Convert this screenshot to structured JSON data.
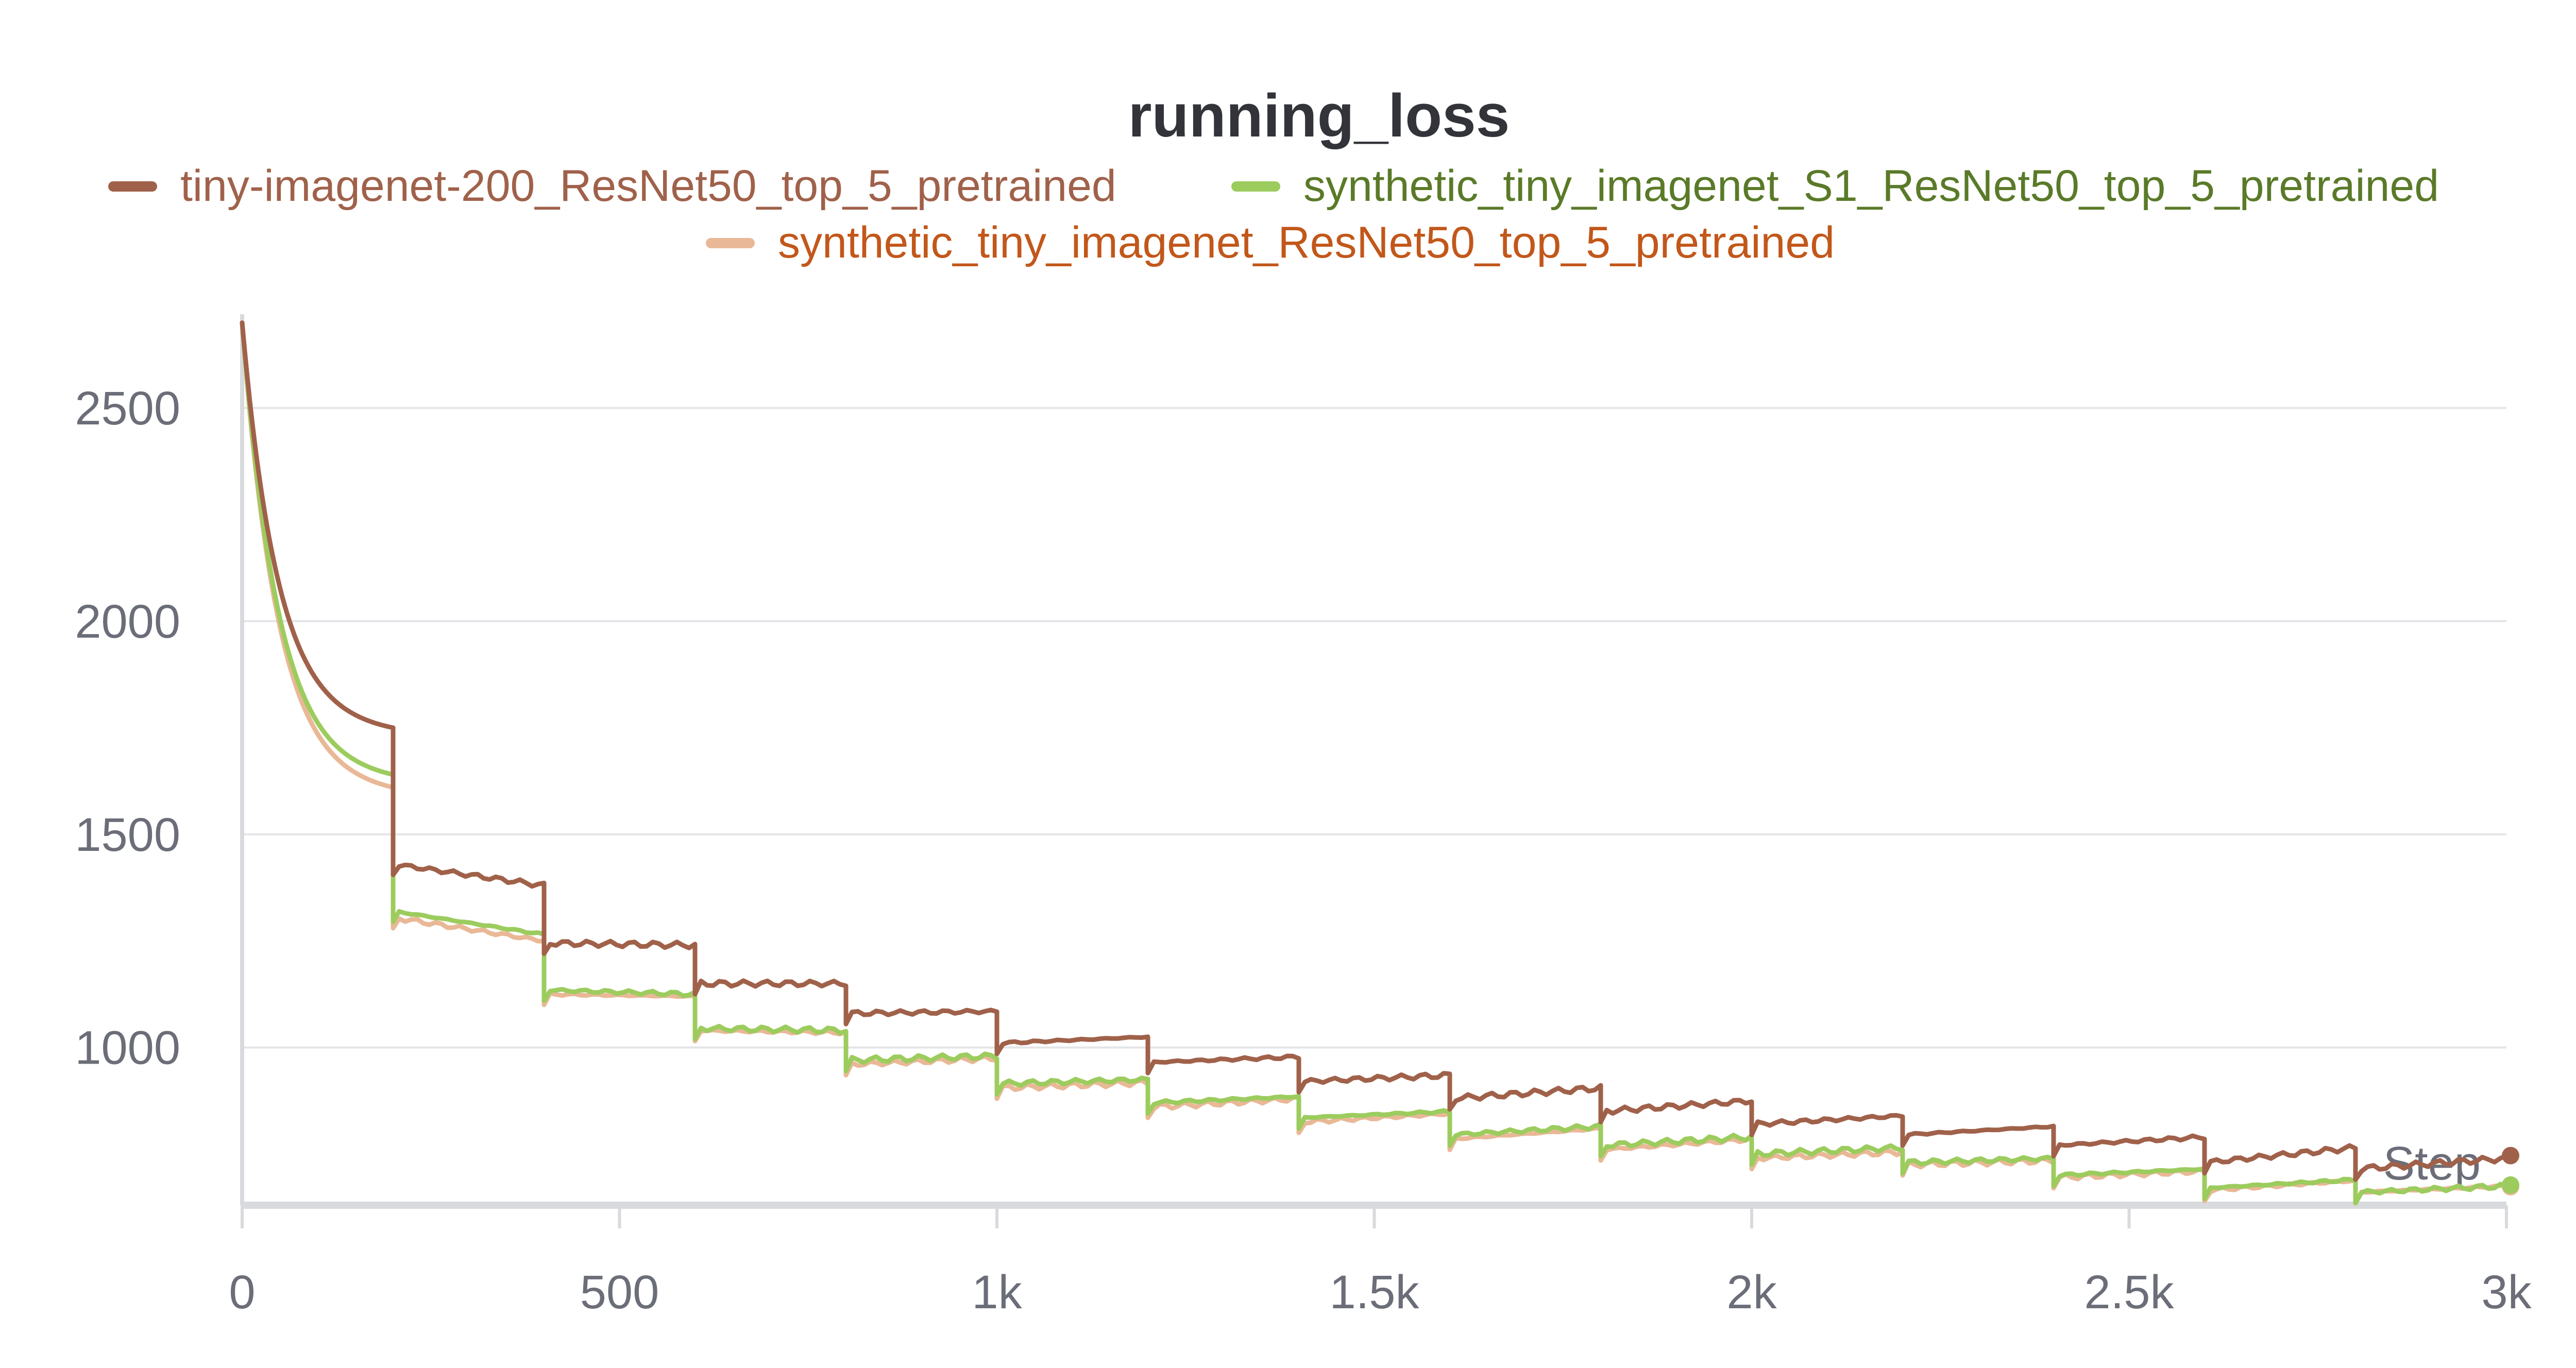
{
  "chart_data": {
    "type": "line",
    "title": "running_loss",
    "xlabel": "Step",
    "ylabel": "",
    "xlim": [
      0,
      3000
    ],
    "ylim": [
      630,
      2720
    ],
    "x_ticks": [
      0,
      500,
      1000,
      1500,
      2000,
      2500,
      3000
    ],
    "x_tick_labels": [
      "0",
      "500",
      "1k",
      "1.5k",
      "2k",
      "2.5k",
      "3k"
    ],
    "y_ticks": [
      1000,
      1500,
      2000,
      2500
    ],
    "y_tick_labels": [
      "1000",
      "1500",
      "2000",
      "2500"
    ],
    "grid": true,
    "legend_position": "top",
    "series": [
      {
        "name": "tiny-imagenet-200_ResNet50_top_5_pretrained",
        "color": "#a0614a",
        "label_color": "#a0614a",
        "start": 2700,
        "epoch_steps": 200,
        "epochs": [
          {
            "start": 2700,
            "end": 1750
          },
          {
            "start": 1430,
            "end": 1380
          },
          {
            "start": 1245,
            "end": 1240
          },
          {
            "start": 1150,
            "end": 1150
          },
          {
            "start": 1080,
            "end": 1085
          },
          {
            "start": 1010,
            "end": 1025
          },
          {
            "start": 965,
            "end": 978
          },
          {
            "start": 920,
            "end": 935
          },
          {
            "start": 880,
            "end": 905
          },
          {
            "start": 850,
            "end": 875
          },
          {
            "start": 820,
            "end": 840
          },
          {
            "start": 795,
            "end": 815
          },
          {
            "start": 770,
            "end": 790
          },
          {
            "start": 730,
            "end": 765
          },
          {
            "start": 715,
            "end": 740
          }
        ]
      },
      {
        "name": "synthetic_tiny_imagenet_S1_ResNet50_top_5_pretrained",
        "color": "#9ccc5e",
        "label_color": "#5a7a28",
        "epochs": [
          {
            "start": 2700,
            "end": 1640
          },
          {
            "start": 1320,
            "end": 1265
          },
          {
            "start": 1135,
            "end": 1125
          },
          {
            "start": 1045,
            "end": 1040
          },
          {
            "start": 970,
            "end": 980
          },
          {
            "start": 915,
            "end": 925
          },
          {
            "start": 870,
            "end": 885
          },
          {
            "start": 835,
            "end": 850
          },
          {
            "start": 795,
            "end": 815
          },
          {
            "start": 770,
            "end": 790
          },
          {
            "start": 750,
            "end": 765
          },
          {
            "start": 730,
            "end": 740
          },
          {
            "start": 700,
            "end": 715
          },
          {
            "start": 670,
            "end": 690
          },
          {
            "start": 660,
            "end": 675
          }
        ]
      },
      {
        "name": "synthetic_tiny_imagenet_ResNet50_top_5_pretrained",
        "color": "#e9b896",
        "label_color": "#c2571a",
        "epochs": [
          {
            "start": 2700,
            "end": 1610
          },
          {
            "start": 1305,
            "end": 1250
          },
          {
            "start": 1125,
            "end": 1120
          },
          {
            "start": 1040,
            "end": 1035
          },
          {
            "start": 960,
            "end": 975
          },
          {
            "start": 905,
            "end": 918
          },
          {
            "start": 860,
            "end": 880
          },
          {
            "start": 825,
            "end": 845
          },
          {
            "start": 785,
            "end": 810
          },
          {
            "start": 760,
            "end": 785
          },
          {
            "start": 740,
            "end": 755
          },
          {
            "start": 725,
            "end": 735
          },
          {
            "start": 695,
            "end": 710
          },
          {
            "start": 665,
            "end": 688
          },
          {
            "start": 660,
            "end": 675
          }
        ]
      }
    ]
  }
}
